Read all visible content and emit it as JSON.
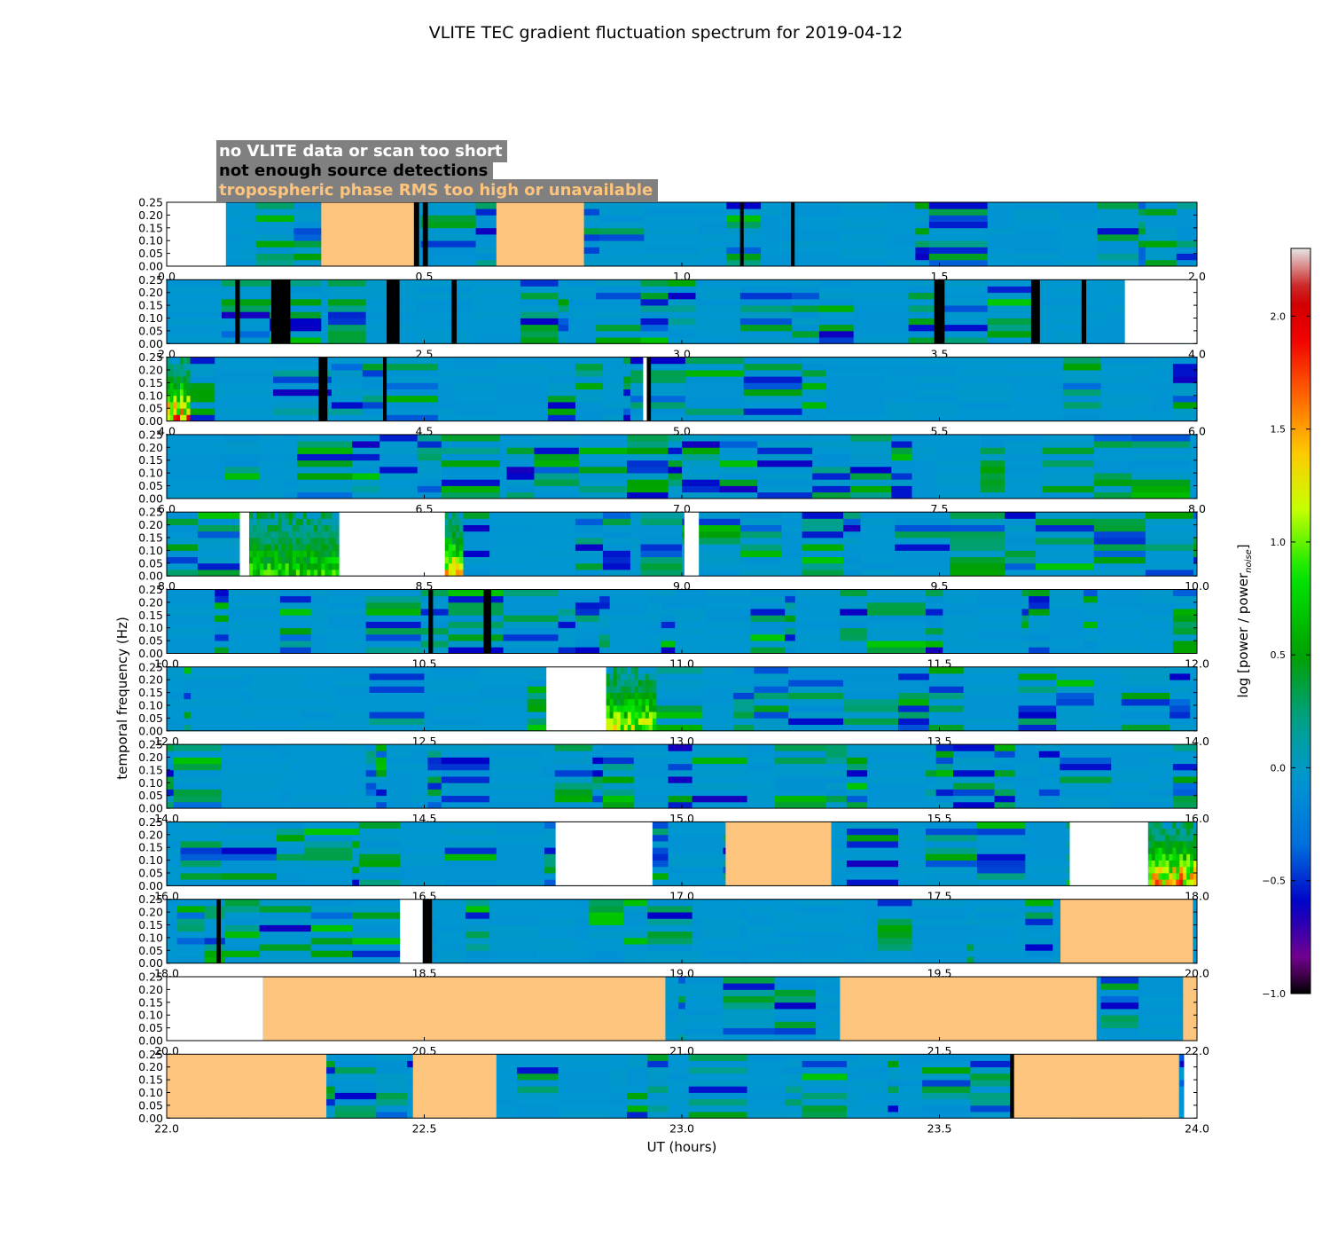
{
  "chart_data": {
    "type": "heatmap",
    "title": "VLITE TEC gradient fluctuation spectrum for 2019-04-12",
    "xlabel": "UT (hours)",
    "ylabel": "temporal frequency (Hz)",
    "ylim": [
      0,
      0.25
    ],
    "y_ticks": [
      "0.00",
      "0.05",
      "0.10",
      "0.15",
      "0.20",
      "0.25"
    ],
    "colorbar": {
      "label_main": "log [power / power",
      "label_sub": "noise",
      "label_close": "]",
      "range": [
        -1.0,
        2.3
      ],
      "ticks": [
        "−1.0",
        "−0.5",
        "0.0",
        "0.5",
        "1.0",
        "1.5",
        "2.0"
      ],
      "tick_values": [
        -1.0,
        -0.5,
        0.0,
        0.5,
        1.0,
        1.5,
        2.0
      ],
      "colormap": "spectral"
    },
    "legend": {
      "background": "#808080",
      "entries": [
        {
          "text": "no VLITE data or scan too short",
          "color": "#ffffff"
        },
        {
          "text": "not enough source detections",
          "color": "#000000"
        },
        {
          "text": "tropospheric phase RMS too high or unavailable",
          "color": "#fdc47d"
        }
      ]
    },
    "mask_colors": {
      "nodata": "#ffffff",
      "detections": "#000000",
      "trop": "#fdc47d"
    },
    "panels": [
      {
        "start": 0,
        "end": 2,
        "x_ticks": [
          "0.0",
          "0.5",
          "1.0",
          "1.5",
          "2.0"
        ],
        "masks": [
          {
            "type": "nodata",
            "from": 0.0,
            "to": 0.115
          },
          {
            "type": "trop",
            "from": 0.3,
            "to": 0.48
          },
          {
            "type": "detections",
            "from": 0.48,
            "to": 0.49
          },
          {
            "type": "detections",
            "from": 0.497,
            "to": 0.507
          },
          {
            "type": "trop",
            "from": 0.64,
            "to": 0.81
          },
          {
            "type": "detections",
            "from": 1.113,
            "to": 1.12
          },
          {
            "type": "detections",
            "from": 1.212,
            "to": 1.219
          }
        ],
        "events": []
      },
      {
        "start": 2,
        "end": 4,
        "x_ticks": [
          "2.0",
          "2.5",
          "3.0",
          "3.5",
          "4.0"
        ],
        "masks": [
          {
            "type": "detections",
            "from": 2.133,
            "to": 2.142
          },
          {
            "type": "detections",
            "from": 2.203,
            "to": 2.24
          },
          {
            "type": "detections",
            "from": 2.427,
            "to": 2.452
          },
          {
            "type": "detections",
            "from": 2.553,
            "to": 2.563
          },
          {
            "type": "detections",
            "from": 3.49,
            "to": 3.51
          },
          {
            "type": "detections",
            "from": 3.678,
            "to": 3.695
          },
          {
            "type": "detections",
            "from": 3.776,
            "to": 3.785
          },
          {
            "type": "nodata",
            "from": 3.86,
            "to": 4.0
          }
        ],
        "events": []
      },
      {
        "start": 4,
        "end": 6,
        "x_ticks": [
          "4.0",
          "4.5",
          "5.0",
          "5.5",
          "6.0"
        ],
        "masks": [
          {
            "type": "detections",
            "from": 4.295,
            "to": 4.312
          },
          {
            "type": "detections",
            "from": 4.42,
            "to": 4.427
          },
          {
            "type": "nodata",
            "from": 4.925,
            "to": 4.932
          },
          {
            "type": "detections",
            "from": 4.932,
            "to": 4.94
          }
        ],
        "events": [
          {
            "from": 4.0,
            "to": 4.045,
            "strength": 1.0
          }
        ]
      },
      {
        "start": 6,
        "end": 8,
        "x_ticks": [
          "6.0",
          "6.5",
          "7.0",
          "7.5",
          "8.0"
        ],
        "masks": [],
        "events": []
      },
      {
        "start": 8,
        "end": 10,
        "x_ticks": [
          "8.0",
          "8.5",
          "9.0",
          "9.5",
          "10.0"
        ],
        "masks": [
          {
            "type": "nodata",
            "from": 8.142,
            "to": 8.16
          },
          {
            "type": "nodata",
            "from": 8.335,
            "to": 8.54
          },
          {
            "type": "nodata",
            "from": 9.005,
            "to": 9.033
          }
        ],
        "events": [
          {
            "from": 8.16,
            "to": 8.335,
            "strength": 0.55
          },
          {
            "from": 8.54,
            "to": 8.575,
            "strength": 0.9
          }
        ]
      },
      {
        "start": 10,
        "end": 12,
        "x_ticks": [
          "10.0",
          "10.5",
          "11.0",
          "11.5",
          "12.0"
        ],
        "masks": [
          {
            "type": "detections",
            "from": 10.508,
            "to": 10.517
          },
          {
            "type": "detections",
            "from": 10.615,
            "to": 10.63
          }
        ],
        "events": []
      },
      {
        "start": 12,
        "end": 14,
        "x_ticks": [
          "12.0",
          "12.5",
          "13.0",
          "13.5",
          "14.0"
        ],
        "masks": [
          {
            "type": "nodata",
            "from": 12.737,
            "to": 12.853
          }
        ],
        "events": [
          {
            "from": 12.853,
            "to": 12.95,
            "strength": 0.75
          }
        ]
      },
      {
        "start": 14,
        "end": 16,
        "x_ticks": [
          "14.0",
          "14.5",
          "15.0",
          "15.5",
          "16.0"
        ],
        "masks": [],
        "events": []
      },
      {
        "start": 16,
        "end": 18,
        "x_ticks": [
          "16.0",
          "16.5",
          "17.0",
          "17.5",
          "18.0"
        ],
        "masks": [
          {
            "type": "nodata",
            "from": 16.755,
            "to": 16.943
          },
          {
            "type": "trop",
            "from": 17.085,
            "to": 17.29
          },
          {
            "type": "nodata",
            "from": 17.753,
            "to": 17.905
          }
        ],
        "events": [
          {
            "from": 17.905,
            "to": 18.0,
            "strength": 1.0
          }
        ]
      },
      {
        "start": 18,
        "end": 20,
        "x_ticks": [
          "18.0",
          "18.5",
          "19.0",
          "19.5",
          "20.0"
        ],
        "masks": [
          {
            "type": "detections",
            "from": 18.097,
            "to": 18.105
          },
          {
            "type": "nodata",
            "from": 18.453,
            "to": 18.497
          },
          {
            "type": "detections",
            "from": 18.497,
            "to": 18.515
          },
          {
            "type": "trop",
            "from": 19.735,
            "to": 19.992
          }
        ],
        "events": []
      },
      {
        "start": 20,
        "end": 22,
        "x_ticks": [
          "20.0",
          "20.5",
          "21.0",
          "21.5",
          "22.0"
        ],
        "masks": [
          {
            "type": "nodata",
            "from": 20.0,
            "to": 20.187
          },
          {
            "type": "trop",
            "from": 20.187,
            "to": 20.968
          },
          {
            "type": "trop",
            "from": 21.307,
            "to": 21.805
          },
          {
            "type": "trop",
            "from": 21.973,
            "to": 22.0
          }
        ],
        "events": []
      },
      {
        "start": 22,
        "end": 24,
        "x_ticks": [
          "22.0",
          "22.5",
          "23.0",
          "23.5",
          "24.0"
        ],
        "masks": [
          {
            "type": "trop",
            "from": 22.0,
            "to": 22.31
          },
          {
            "type": "trop",
            "from": 22.478,
            "to": 22.64
          },
          {
            "type": "detections",
            "from": 23.637,
            "to": 23.645
          },
          {
            "type": "trop",
            "from": 23.645,
            "to": 23.965
          },
          {
            "type": "nodata",
            "from": 23.975,
            "to": 24.0
          }
        ],
        "events": []
      }
    ]
  }
}
